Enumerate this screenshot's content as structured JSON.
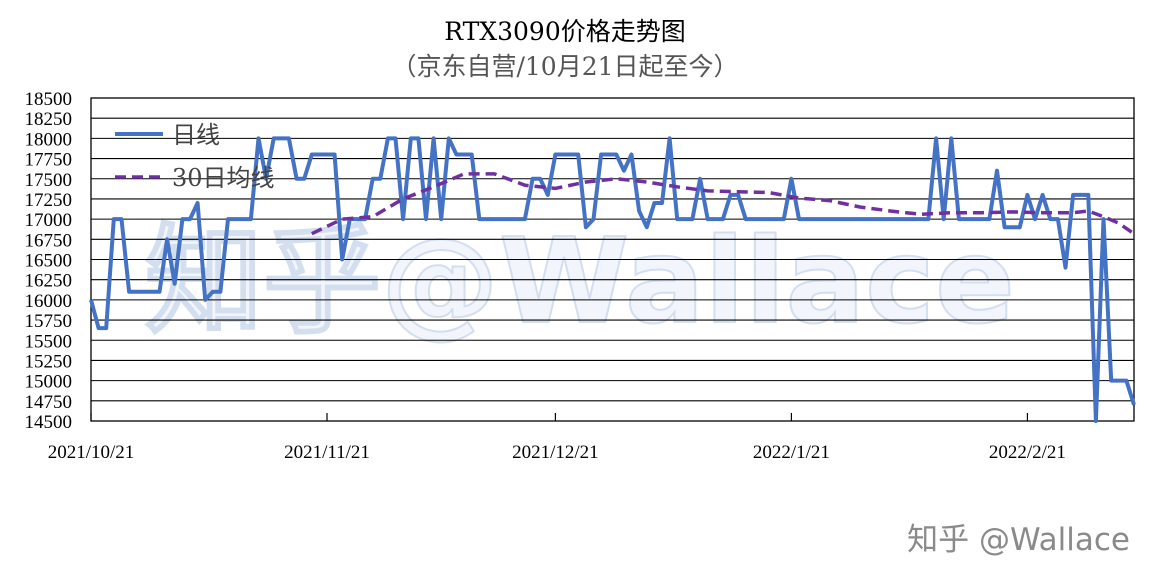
{
  "chart_data": {
    "type": "line",
    "title": "RTX3090价格走势图",
    "subtitle": "（京东自营/10月21日起至今）",
    "xlabel": "",
    "ylabel": "",
    "ylim": [
      14500,
      18500
    ],
    "ytick_step": 250,
    "x_start": "2021/10/21",
    "x_end": "2022/3/7",
    "x_ticks": [
      "2021/10/21",
      "2021/11/21",
      "2021/12/21",
      "2022/1/21",
      "2022/2/21"
    ],
    "grid": "horizontal",
    "legend_position": "top-left",
    "series": [
      {
        "name": "日线",
        "color": "#4472c4",
        "style": "solid",
        "points": [
          [
            "2021/10/21",
            16000
          ],
          [
            "2021/10/22",
            15650
          ],
          [
            "2021/10/23",
            15650
          ],
          [
            "2021/10/24",
            17000
          ],
          [
            "2021/10/25",
            17000
          ],
          [
            "2021/10/26",
            16100
          ],
          [
            "2021/10/27",
            16100
          ],
          [
            "2021/10/28",
            16100
          ],
          [
            "2021/10/29",
            16100
          ],
          [
            "2021/10/30",
            16100
          ],
          [
            "2021/10/31",
            16750
          ],
          [
            "2021/11/1",
            16200
          ],
          [
            "2021/11/2",
            17000
          ],
          [
            "2021/11/3",
            17000
          ],
          [
            "2021/11/4",
            17200
          ],
          [
            "2021/11/5",
            16000
          ],
          [
            "2021/11/6",
            16100
          ],
          [
            "2021/11/7",
            16100
          ],
          [
            "2021/11/8",
            17000
          ],
          [
            "2021/11/9",
            17000
          ],
          [
            "2021/11/10",
            17000
          ],
          [
            "2021/11/11",
            17000
          ],
          [
            "2021/11/12",
            18000
          ],
          [
            "2021/11/13",
            17500
          ],
          [
            "2021/11/14",
            18000
          ],
          [
            "2021/11/15",
            18000
          ],
          [
            "2021/11/16",
            18000
          ],
          [
            "2021/11/17",
            17500
          ],
          [
            "2021/11/18",
            17500
          ],
          [
            "2021/11/19",
            17800
          ],
          [
            "2021/11/20",
            17800
          ],
          [
            "2021/11/21",
            17800
          ],
          [
            "2021/11/22",
            17800
          ],
          [
            "2021/11/23",
            16500
          ],
          [
            "2021/11/24",
            17000
          ],
          [
            "2021/11/25",
            17000
          ],
          [
            "2021/11/26",
            17000
          ],
          [
            "2021/11/27",
            17500
          ],
          [
            "2021/11/28",
            17500
          ],
          [
            "2021/11/29",
            18000
          ],
          [
            "2021/11/30",
            18000
          ],
          [
            "2021/12/1",
            17000
          ],
          [
            "2021/12/2",
            18000
          ],
          [
            "2021/12/3",
            18000
          ],
          [
            "2021/12/4",
            17000
          ],
          [
            "2021/12/5",
            18000
          ],
          [
            "2021/12/6",
            17000
          ],
          [
            "2021/12/7",
            18000
          ],
          [
            "2021/12/8",
            17800
          ],
          [
            "2021/12/9",
            17800
          ],
          [
            "2021/12/10",
            17800
          ],
          [
            "2021/12/11",
            17000
          ],
          [
            "2021/12/12",
            17000
          ],
          [
            "2021/12/13",
            17000
          ],
          [
            "2021/12/14",
            17000
          ],
          [
            "2021/12/15",
            17000
          ],
          [
            "2021/12/16",
            17000
          ],
          [
            "2021/12/17",
            17000
          ],
          [
            "2021/12/18",
            17500
          ],
          [
            "2021/12/19",
            17500
          ],
          [
            "2021/12/20",
            17300
          ],
          [
            "2021/12/21",
            17800
          ],
          [
            "2021/12/22",
            17800
          ],
          [
            "2021/12/23",
            17800
          ],
          [
            "2021/12/24",
            17800
          ],
          [
            "2021/12/25",
            16900
          ],
          [
            "2021/12/26",
            17000
          ],
          [
            "2021/12/27",
            17800
          ],
          [
            "2021/12/28",
            17800
          ],
          [
            "2021/12/29",
            17800
          ],
          [
            "2021/12/30",
            17600
          ],
          [
            "2021/12/31",
            17800
          ],
          [
            "2022/1/1",
            17100
          ],
          [
            "2022/1/2",
            16900
          ],
          [
            "2022/1/3",
            17200
          ],
          [
            "2022/1/4",
            17200
          ],
          [
            "2022/1/5",
            18000
          ],
          [
            "2022/1/6",
            17000
          ],
          [
            "2022/1/7",
            17000
          ],
          [
            "2022/1/8",
            17000
          ],
          [
            "2022/1/9",
            17500
          ],
          [
            "2022/1/10",
            17000
          ],
          [
            "2022/1/11",
            17000
          ],
          [
            "2022/1/12",
            17000
          ],
          [
            "2022/1/13",
            17300
          ],
          [
            "2022/1/14",
            17300
          ],
          [
            "2022/1/15",
            17000
          ],
          [
            "2022/1/16",
            17000
          ],
          [
            "2022/1/17",
            17000
          ],
          [
            "2022/1/18",
            17000
          ],
          [
            "2022/1/19",
            17000
          ],
          [
            "2022/1/20",
            17000
          ],
          [
            "2022/1/21",
            17500
          ],
          [
            "2022/1/22",
            17000
          ],
          [
            "2022/1/23",
            17000
          ],
          [
            "2022/1/24",
            17000
          ],
          [
            "2022/1/25",
            17000
          ],
          [
            "2022/1/26",
            17000
          ],
          [
            "2022/1/27",
            17000
          ],
          [
            "2022/1/28",
            17000
          ],
          [
            "2022/1/29",
            17000
          ],
          [
            "2022/1/30",
            17000
          ],
          [
            "2022/1/31",
            17000
          ],
          [
            "2022/2/1",
            17000
          ],
          [
            "2022/2/2",
            17000
          ],
          [
            "2022/2/3",
            17000
          ],
          [
            "2022/2/4",
            17000
          ],
          [
            "2022/2/5",
            17000
          ],
          [
            "2022/2/6",
            17000
          ],
          [
            "2022/2/7",
            17000
          ],
          [
            "2022/2/8",
            17000
          ],
          [
            "2022/2/9",
            18000
          ],
          [
            "2022/2/10",
            17000
          ],
          [
            "2022/2/11",
            18000
          ],
          [
            "2022/2/12",
            17000
          ],
          [
            "2022/2/13",
            17000
          ],
          [
            "2022/2/14",
            17000
          ],
          [
            "2022/2/15",
            17000
          ],
          [
            "2022/2/16",
            17000
          ],
          [
            "2022/2/17",
            17600
          ],
          [
            "2022/2/18",
            16900
          ],
          [
            "2022/2/19",
            16900
          ],
          [
            "2022/2/20",
            16900
          ],
          [
            "2022/2/21",
            17300
          ],
          [
            "2022/2/22",
            17000
          ],
          [
            "2022/2/23",
            17300
          ],
          [
            "2022/2/24",
            17000
          ],
          [
            "2022/2/25",
            17000
          ],
          [
            "2022/2/26",
            16400
          ],
          [
            "2022/2/27",
            17300
          ],
          [
            "2022/2/28",
            17300
          ],
          [
            "2022/3/1",
            17300
          ],
          [
            "2022/3/2",
            14500
          ],
          [
            "2022/3/3",
            17000
          ],
          [
            "2022/3/4",
            15000
          ],
          [
            "2022/3/5",
            15000
          ],
          [
            "2022/3/6",
            15000
          ],
          [
            "2022/3/7",
            14700
          ]
        ]
      },
      {
        "name": "30日均线",
        "color": "#7030a0",
        "style": "dashed",
        "points": [
          [
            "2021/11/19",
            16820
          ],
          [
            "2021/11/23",
            17000
          ],
          [
            "2021/11/27",
            17030
          ],
          [
            "2021/12/1",
            17250
          ],
          [
            "2021/12/5",
            17400
          ],
          [
            "2021/12/9",
            17560
          ],
          [
            "2021/12/13",
            17560
          ],
          [
            "2021/12/17",
            17420
          ],
          [
            "2021/12/21",
            17380
          ],
          [
            "2021/12/25",
            17460
          ],
          [
            "2021/12/29",
            17500
          ],
          [
            "2022/1/2",
            17460
          ],
          [
            "2022/1/6",
            17400
          ],
          [
            "2022/1/10",
            17350
          ],
          [
            "2022/1/14",
            17340
          ],
          [
            "2022/1/18",
            17330
          ],
          [
            "2022/1/22",
            17260
          ],
          [
            "2022/1/26",
            17230
          ],
          [
            "2022/1/30",
            17150
          ],
          [
            "2022/2/3",
            17100
          ],
          [
            "2022/2/7",
            17060
          ],
          [
            "2022/2/11",
            17080
          ],
          [
            "2022/2/15",
            17080
          ],
          [
            "2022/2/19",
            17090
          ],
          [
            "2022/2/23",
            17080
          ],
          [
            "2022/2/27",
            17080
          ],
          [
            "2022/3/1",
            17100
          ],
          [
            "2022/3/3",
            17030
          ],
          [
            "2022/3/5",
            16950
          ],
          [
            "2022/3/7",
            16820
          ]
        ]
      }
    ]
  },
  "watermark": {
    "center": "知乎@Wallace",
    "corner": "知乎 @Wallace"
  }
}
